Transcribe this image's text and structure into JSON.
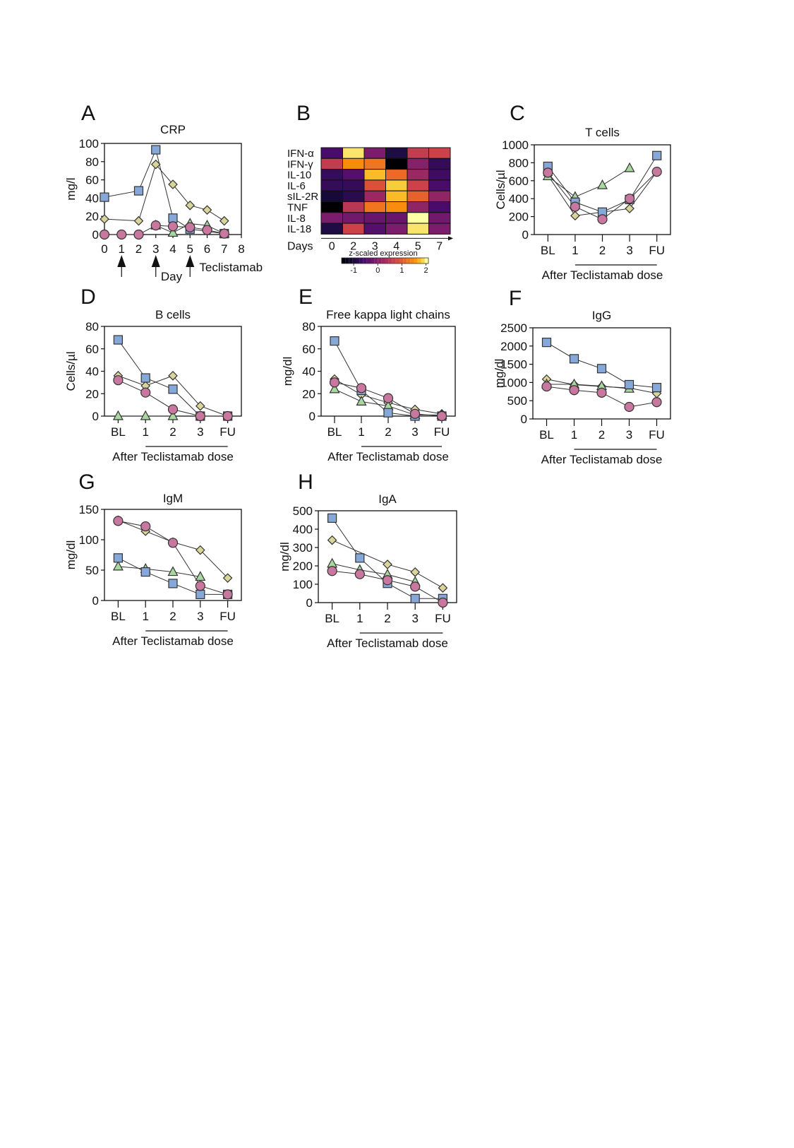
{
  "colors": {
    "square": "#86a8d8",
    "diamond": "#d8d49a",
    "triangle": "#a8d8a0",
    "circle": "#c8779e",
    "stroke": "#333333"
  },
  "chart_data": [
    {
      "id": "A",
      "letter": "A",
      "type": "line",
      "title": "CRP",
      "xlabel": "Day",
      "ylabel": "mg/l",
      "xlim": [
        0,
        8
      ],
      "ylim": [
        0,
        100
      ],
      "xticks": [
        "0",
        "1",
        "2",
        "3",
        "4",
        "5",
        "6",
        "7",
        "8"
      ],
      "yticks": [
        "0",
        "20",
        "40",
        "60",
        "80",
        "100"
      ],
      "annotation": "Teclistamab",
      "dose_days": [
        1,
        3,
        5
      ],
      "series": [
        {
          "name": "patient-square",
          "marker": "square",
          "x": [
            0,
            2,
            3,
            4,
            5,
            7
          ],
          "y": [
            41,
            48,
            93,
            18,
            6,
            1
          ]
        },
        {
          "name": "patient-diamond",
          "marker": "diamond",
          "x": [
            0,
            2,
            3,
            4,
            5,
            6,
            7
          ],
          "y": [
            17,
            15,
            77,
            55,
            32,
            27,
            15
          ]
        },
        {
          "name": "patient-triangle",
          "marker": "triangle",
          "x": [
            3,
            4,
            5,
            6,
            7
          ],
          "y": [
            10,
            2,
            12,
            10,
            1
          ]
        },
        {
          "name": "patient-circle",
          "marker": "circle",
          "x": [
            0,
            1,
            2,
            3,
            4,
            5,
            6,
            7
          ],
          "y": [
            0,
            0,
            0,
            10,
            9,
            8,
            5,
            1
          ]
        }
      ]
    },
    {
      "id": "B",
      "letter": "B",
      "type": "heatmap",
      "xlabel": "Days",
      "columns": [
        "0",
        "2",
        "3",
        "4",
        "5",
        "7"
      ],
      "rows": [
        "IFN-α",
        "IFN-γ",
        "IL-10",
        "IL-6",
        "sIL-2R",
        "TNF",
        "IL-8",
        "IL-18"
      ],
      "values": [
        [
          -0.6,
          2.0,
          -0.1,
          -1.0,
          0.6,
          0.7
        ],
        [
          0.6,
          1.5,
          1.3,
          -1.5,
          0.0,
          -0.8
        ],
        [
          -0.8,
          -0.5,
          1.8,
          1.2,
          0.2,
          -0.7
        ],
        [
          -0.8,
          -0.8,
          0.9,
          1.9,
          0.7,
          -0.6
        ],
        [
          -1.1,
          -0.9,
          0.2,
          1.8,
          1.1,
          0.1
        ],
        [
          -1.6,
          0.5,
          1.3,
          1.5,
          0.1,
          -0.6
        ],
        [
          -0.1,
          -0.2,
          -0.3,
          -0.3,
          2.3,
          -0.2
        ],
        [
          -1.0,
          0.7,
          -0.5,
          -0.1,
          2.0,
          -0.1
        ]
      ],
      "colorbar": {
        "label": "z-scaled expression",
        "min": -1.5,
        "max": 2.1,
        "ticks": [
          "-1",
          "0",
          "1",
          "2"
        ]
      }
    },
    {
      "id": "C",
      "letter": "C",
      "type": "line",
      "title": "T cells",
      "ylabel": "Cells/µl",
      "xlabel": "After Teclistamab dose",
      "categories": [
        "BL",
        "1",
        "2",
        "3",
        "FU"
      ],
      "ylim": [
        0,
        1000
      ],
      "yticks": [
        "0",
        "200",
        "400",
        "600",
        "800",
        "1000"
      ],
      "series": [
        {
          "name": "patient-square",
          "marker": "square",
          "values": [
            760,
            360,
            250,
            390,
            880
          ]
        },
        {
          "name": "patient-diamond",
          "marker": "diamond",
          "values": [
            660,
            210,
            250,
            290,
            700
          ]
        },
        {
          "name": "patient-triangle",
          "marker": "triangle",
          "values": [
            650,
            420,
            550,
            740,
            null
          ]
        },
        {
          "name": "patient-circle",
          "marker": "circle",
          "values": [
            690,
            310,
            170,
            400,
            700
          ]
        }
      ]
    },
    {
      "id": "D",
      "letter": "D",
      "type": "line",
      "title": "B cells",
      "ylabel": "Cells/µl",
      "xlabel": "After Teclistamab dose",
      "categories": [
        "BL",
        "1",
        "2",
        "3",
        "FU"
      ],
      "ylim": [
        0,
        80
      ],
      "yticks": [
        "0",
        "20",
        "40",
        "60",
        "80"
      ],
      "series": [
        {
          "name": "patient-square",
          "marker": "square",
          "values": [
            68,
            34,
            24,
            0,
            0
          ]
        },
        {
          "name": "patient-diamond",
          "marker": "diamond",
          "values": [
            36,
            27,
            36,
            9,
            0
          ]
        },
        {
          "name": "patient-triangle",
          "marker": "triangle",
          "values": [
            0,
            0,
            0,
            null,
            null
          ]
        },
        {
          "name": "patient-circle",
          "marker": "circle",
          "values": [
            32,
            21,
            6,
            0,
            0
          ]
        }
      ]
    },
    {
      "id": "E",
      "letter": "E",
      "type": "line",
      "title": "Free kappa light chains",
      "ylabel": "mg/dl",
      "xlabel": "After Teclistamab dose",
      "categories": [
        "BL",
        "1",
        "2",
        "3",
        "FU"
      ],
      "ylim": [
        0,
        80
      ],
      "yticks": [
        "0",
        "20",
        "40",
        "60",
        "80"
      ],
      "series": [
        {
          "name": "patient-square",
          "marker": "square",
          "values": [
            67,
            23,
            3,
            0,
            0
          ]
        },
        {
          "name": "patient-diamond",
          "marker": "diamond",
          "values": [
            33,
            19,
            12,
            6,
            2
          ]
        },
        {
          "name": "patient-triangle",
          "marker": "triangle",
          "values": [
            24,
            13,
            9,
            1,
            1
          ]
        },
        {
          "name": "patient-circle",
          "marker": "circle",
          "values": [
            30,
            25,
            16,
            2,
            0
          ]
        }
      ]
    },
    {
      "id": "F",
      "letter": "F",
      "type": "line",
      "title": "IgG",
      "ylabel": "mg/dl",
      "xlabel": "After Teclistamab dose",
      "categories": [
        "BL",
        "1",
        "2",
        "3",
        "FU"
      ],
      "ylim": [
        0,
        2500
      ],
      "yticks": [
        "0",
        "500",
        "1000",
        "1500",
        "2000",
        "2500"
      ],
      "series": [
        {
          "name": "patient-square",
          "marker": "square",
          "values": [
            2100,
            1650,
            1380,
            940,
            860
          ]
        },
        {
          "name": "patient-diamond",
          "marker": "diamond",
          "values": [
            1090,
            940,
            890,
            850,
            700
          ]
        },
        {
          "name": "patient-triangle",
          "marker": "triangle",
          "values": [
            950,
            950,
            900,
            830,
            null
          ]
        },
        {
          "name": "patient-circle",
          "marker": "circle",
          "values": [
            890,
            790,
            720,
            330,
            460
          ]
        }
      ]
    },
    {
      "id": "G",
      "letter": "G",
      "type": "line",
      "title": "IgM",
      "ylabel": "mg/dl",
      "xlabel": "After Teclistamab dose",
      "categories": [
        "BL",
        "1",
        "2",
        "3",
        "FU"
      ],
      "ylim": [
        0,
        150
      ],
      "yticks": [
        "0",
        "50",
        "100",
        "150"
      ],
      "series": [
        {
          "name": "patient-square",
          "marker": "square",
          "values": [
            70,
            47,
            28,
            10,
            10
          ]
        },
        {
          "name": "patient-diamond",
          "marker": "diamond",
          "values": [
            132,
            114,
            96,
            83,
            37
          ]
        },
        {
          "name": "patient-triangle",
          "marker": "triangle",
          "values": [
            56,
            52,
            47,
            39,
            null
          ]
        },
        {
          "name": "patient-circle",
          "marker": "circle",
          "values": [
            131,
            122,
            95,
            24,
            10
          ]
        }
      ]
    },
    {
      "id": "H",
      "letter": "H",
      "type": "line",
      "title": "IgA",
      "ylabel": "mg/dl",
      "xlabel": "After Teclistamab dose",
      "categories": [
        "BL",
        "1",
        "2",
        "3",
        "FU"
      ],
      "ylim": [
        0,
        500
      ],
      "yticks": [
        "0",
        "100",
        "200",
        "300",
        "400",
        "500"
      ],
      "series": [
        {
          "name": "patient-square",
          "marker": "square",
          "values": [
            460,
            243,
            105,
            22,
            22
          ]
        },
        {
          "name": "patient-diamond",
          "marker": "diamond",
          "values": [
            340,
            null,
            208,
            166,
            80
          ]
        },
        {
          "name": "patient-triangle",
          "marker": "triangle",
          "values": [
            212,
            178,
            153,
            113,
            null
          ]
        },
        {
          "name": "patient-circle",
          "marker": "circle",
          "values": [
            172,
            155,
            122,
            87,
            0
          ]
        }
      ]
    }
  ]
}
